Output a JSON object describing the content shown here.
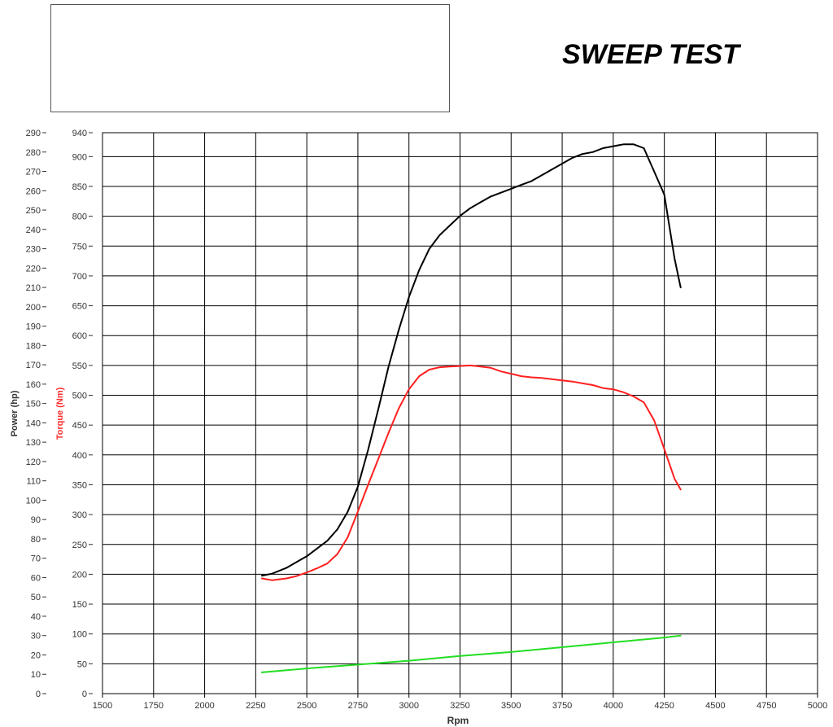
{
  "header": {
    "title": "SWEEP TEST"
  },
  "chart_data": {
    "type": "line",
    "title": "SWEEP TEST",
    "xlabel": "Rpm",
    "ylabel_left": "Power (hp)",
    "ylabel_right": "Torque (Nm)",
    "xlim": [
      1500,
      5000
    ],
    "ylim_power": [
      0,
      290
    ],
    "ylim_torque": [
      0,
      940
    ],
    "x_ticks": [
      1500,
      1750,
      2000,
      2250,
      2500,
      2750,
      3000,
      3250,
      3500,
      3750,
      4000,
      4250,
      4500,
      4750,
      5000
    ],
    "power_ticks": [
      0,
      10,
      20,
      30,
      40,
      50,
      60,
      70,
      80,
      90,
      100,
      110,
      120,
      130,
      140,
      150,
      160,
      170,
      180,
      190,
      200,
      210,
      220,
      230,
      240,
      250,
      260,
      270,
      280,
      290
    ],
    "torque_ticks": [
      0,
      50,
      100,
      150,
      200,
      250,
      300,
      350,
      400,
      450,
      500,
      550,
      600,
      650,
      700,
      750,
      800,
      850,
      900,
      940
    ],
    "grid": true,
    "colors": {
      "power": "#000000",
      "torque": "#ff2020",
      "third": "#22dd22",
      "power_label": "#333333",
      "torque_label": "#ff3030"
    },
    "series": [
      {
        "key": "power",
        "axis": "power",
        "x": [
          2280,
          2330,
          2400,
          2450,
          2500,
          2550,
          2600,
          2650,
          2700,
          2750,
          2800,
          2850,
          2900,
          2950,
          3000,
          3050,
          3100,
          3150,
          3200,
          3250,
          3300,
          3350,
          3400,
          3450,
          3500,
          3550,
          3600,
          3650,
          3700,
          3750,
          3800,
          3850,
          3900,
          3950,
          4000,
          4050,
          4100,
          4150,
          4200,
          4250,
          4300,
          4330
        ],
        "y": [
          61,
          62,
          65,
          68,
          71,
          75,
          79,
          85,
          94,
          107,
          126,
          147,
          169,
          188,
          205,
          219,
          230,
          237,
          242,
          247,
          251,
          254,
          257,
          259,
          261,
          263,
          265,
          268,
          271,
          274,
          277,
          279,
          280,
          282,
          283,
          284,
          284,
          282,
          270,
          258,
          225,
          210
        ]
      },
      {
        "key": "torque",
        "axis": "torque",
        "x": [
          2280,
          2330,
          2400,
          2450,
          2500,
          2550,
          2600,
          2650,
          2700,
          2750,
          2800,
          2850,
          2900,
          2950,
          3000,
          3050,
          3100,
          3150,
          3200,
          3250,
          3300,
          3350,
          3400,
          3450,
          3500,
          3550,
          3600,
          3650,
          3700,
          3750,
          3800,
          3850,
          3900,
          3950,
          4000,
          4050,
          4100,
          4150,
          4200,
          4250,
          4300,
          4330
        ],
        "y": [
          193,
          190,
          193,
          197,
          203,
          210,
          218,
          234,
          262,
          305,
          350,
          393,
          437,
          478,
          510,
          532,
          543,
          547,
          548,
          549,
          550,
          548,
          546,
          540,
          536,
          532,
          530,
          529,
          527,
          525,
          523,
          520,
          517,
          512,
          510,
          505,
          498,
          488,
          458,
          410,
          360,
          342
        ]
      },
      {
        "key": "third",
        "axis": "power",
        "x": [
          2280,
          2500,
          2750,
          3000,
          3250,
          3500,
          3750,
          4000,
          4250,
          4330
        ],
        "y": [
          11,
          13,
          15,
          17,
          19.5,
          21.5,
          24,
          26.5,
          29,
          30
        ]
      }
    ]
  }
}
